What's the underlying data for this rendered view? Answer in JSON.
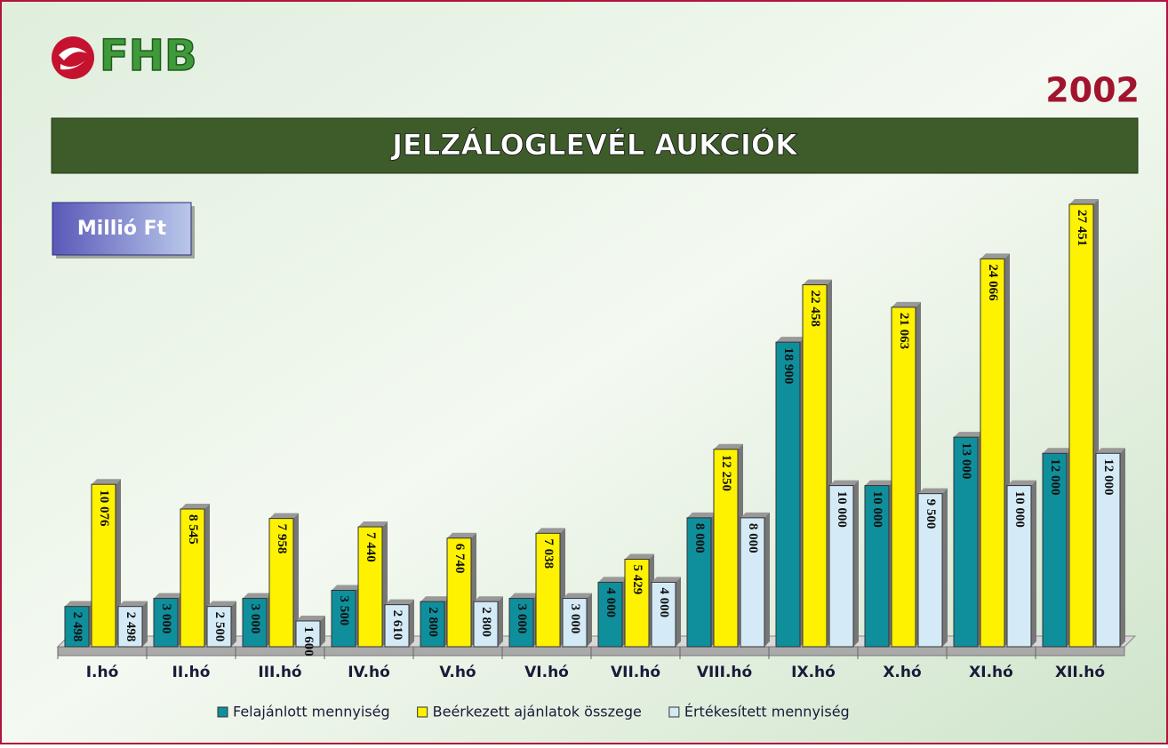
{
  "logo_text": "FHB",
  "year": "2002",
  "chart_data": {
    "type": "bar",
    "title": "JELZÁLOGLEVÉL AUKCIÓK",
    "unit_label": "Millió Ft",
    "categories": [
      "I.hó",
      "II.hó",
      "III.hó",
      "IV.hó",
      "V.hó",
      "VI.hó",
      "VII.hó",
      "VIII.hó",
      "IX.hó",
      "X.hó",
      "XI.hó",
      "XII.hó"
    ],
    "series": [
      {
        "name": "Felajánlott mennyiség",
        "color": "#0f8f9c",
        "values": [
          2498,
          3000,
          3000,
          3500,
          2800,
          3000,
          4000,
          8000,
          18900,
          10000,
          13000,
          12000
        ],
        "value_labels": [
          "2 498",
          "3 000",
          "3 000",
          "3 500",
          "2 800",
          "3 000",
          "4 000",
          "8 000",
          "18 900",
          "10 000",
          "13 000",
          "12 000"
        ]
      },
      {
        "name": "Beérkezett ajánlatok összege",
        "color": "#fff200",
        "values": [
          10076,
          8545,
          7958,
          7440,
          6740,
          7038,
          5429,
          12250,
          22458,
          21063,
          24066,
          27451
        ],
        "value_labels": [
          "10 076",
          "8 545",
          "7 958",
          "7 440",
          "6 740",
          "7 038",
          "5 429",
          "12 250",
          "22 458",
          "21 063",
          "24 066",
          "27 451"
        ]
      },
      {
        "name": "Értékesített mennyiség",
        "color": "#d4ebf7",
        "values": [
          2498,
          2500,
          1600,
          2610,
          2800,
          3000,
          4000,
          8000,
          10000,
          9500,
          10000,
          12000
        ],
        "value_labels": [
          "2 498",
          "2 500",
          "1 600",
          "2 610",
          "2 800",
          "3 000",
          "4 000",
          "8 000",
          "10 000",
          "9 500",
          "10 000",
          "12 000"
        ]
      }
    ]
  }
}
